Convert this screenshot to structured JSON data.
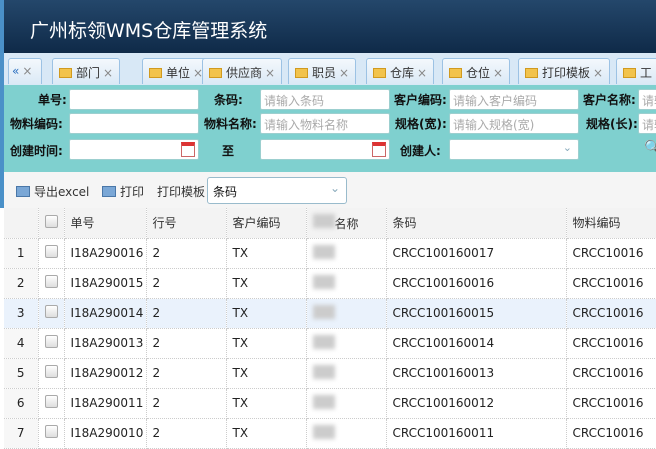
{
  "app": {
    "title": "广州标领WMS仓库管理系统"
  },
  "tabs": {
    "collapse": "«",
    "items": [
      {
        "label": "部门"
      },
      {
        "label": "单位"
      },
      {
        "label": "供应商"
      },
      {
        "label": "职员"
      },
      {
        "label": "仓库"
      },
      {
        "label": "仓位"
      },
      {
        "label": "打印模板"
      },
      {
        "label": "工"
      }
    ],
    "close": "×"
  },
  "filter": {
    "order_no": {
      "label": "单号:",
      "value": ""
    },
    "barcode": {
      "label": "条码:",
      "placeholder": "请输入条码"
    },
    "customer_code": {
      "label": "客户编码:",
      "placeholder": "请输入客户编码"
    },
    "customer_name": {
      "label": "客户名称:",
      "placeholder": "请输"
    },
    "material_code": {
      "label": "物料编码:",
      "value": ""
    },
    "material_name": {
      "label": "物料名称:",
      "placeholder": "请输入物料名称"
    },
    "spec_width": {
      "label": "规格(宽):",
      "placeholder": "请输入规格(宽)"
    },
    "spec_length": {
      "label": "规格(长):",
      "placeholder": "请输"
    },
    "created_from": {
      "label": "创建时间:",
      "value": ""
    },
    "created_to": {
      "label": "至",
      "value": ""
    },
    "creator": {
      "label": "创建人:",
      "value": ""
    }
  },
  "toolbar": {
    "export": "导出excel",
    "print": "打印",
    "template_label": "打印模板",
    "template_value": "条码"
  },
  "table": {
    "columns": [
      "单号",
      "行号",
      "客户编码",
      "名称",
      "条码",
      "物料编码"
    ],
    "rows": [
      {
        "n": "1",
        "order": "I18A290016",
        "line": "2",
        "cust": "TX",
        "barcode": "CRCC100160017",
        "mat": "CRCC10016"
      },
      {
        "n": "2",
        "order": "I18A290015",
        "line": "2",
        "cust": "TX",
        "barcode": "CRCC100160016",
        "mat": "CRCC10016"
      },
      {
        "n": "3",
        "order": "I18A290014",
        "line": "2",
        "cust": "TX",
        "barcode": "CRCC100160015",
        "mat": "CRCC10016"
      },
      {
        "n": "4",
        "order": "I18A290013",
        "line": "2",
        "cust": "TX",
        "barcode": "CRCC100160014",
        "mat": "CRCC10016"
      },
      {
        "n": "5",
        "order": "I18A290012",
        "line": "2",
        "cust": "TX",
        "barcode": "CRCC100160013",
        "mat": "CRCC10016"
      },
      {
        "n": "6",
        "order": "I18A290011",
        "line": "2",
        "cust": "TX",
        "barcode": "CRCC100160012",
        "mat": "CRCC10016"
      },
      {
        "n": "7",
        "order": "I18A290010",
        "line": "2",
        "cust": "TX",
        "barcode": "CRCC100160011",
        "mat": "CRCC10016"
      }
    ]
  }
}
